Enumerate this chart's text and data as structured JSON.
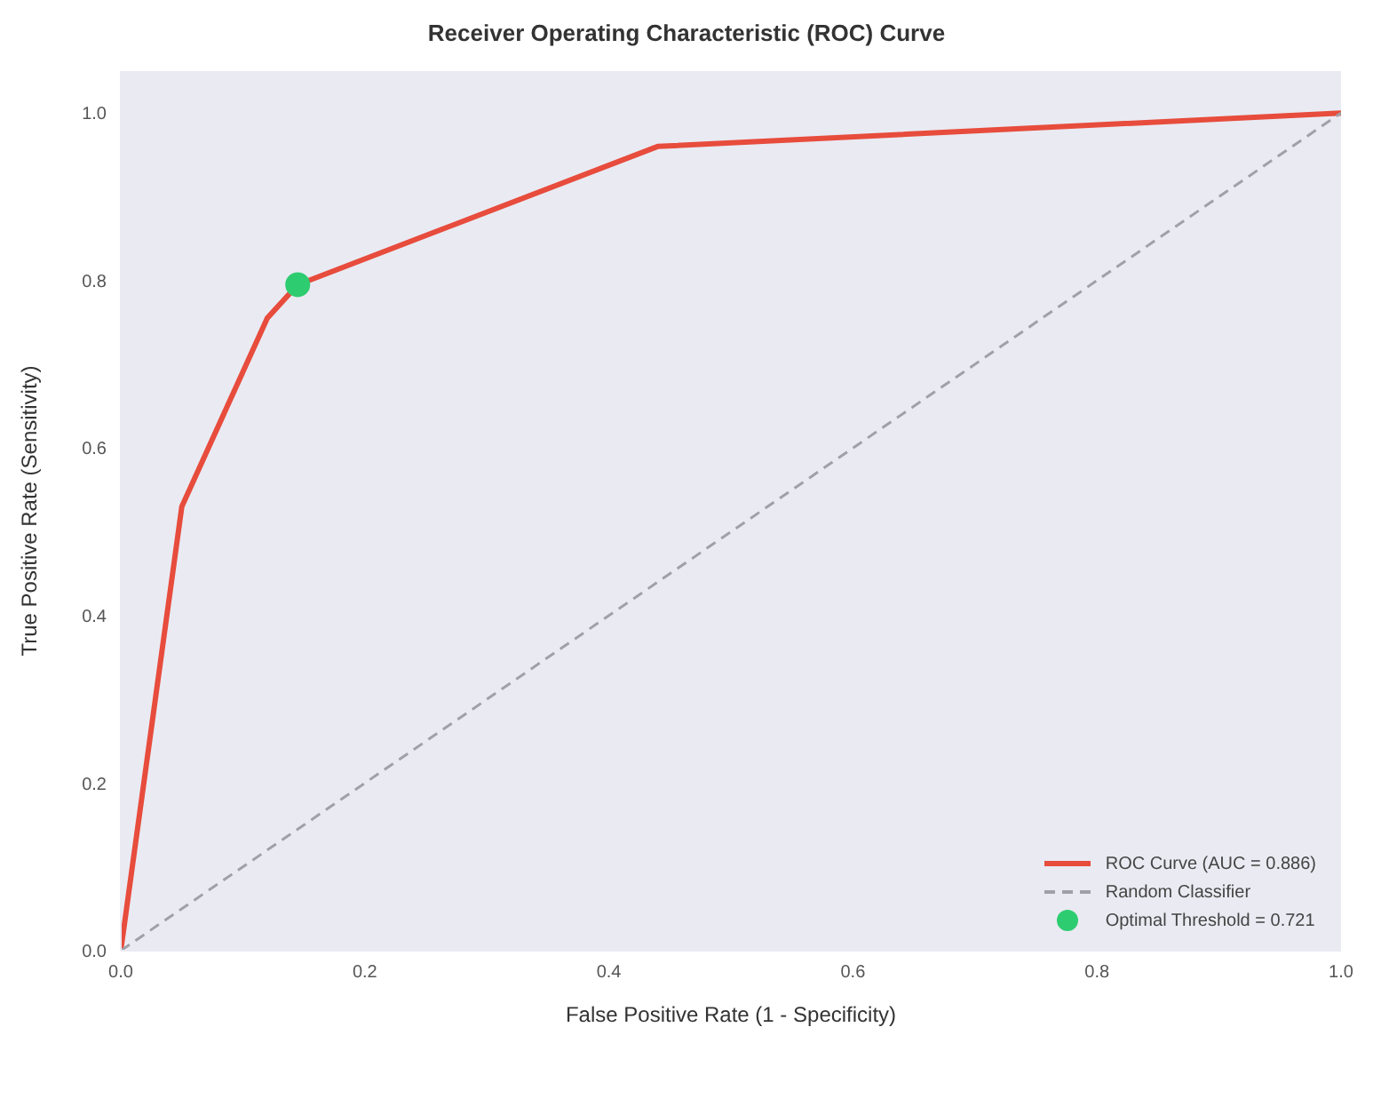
{
  "chart_data": {
    "type": "line",
    "title": "Receiver Operating Characteristic (ROC) Curve",
    "xlabel": "False Positive Rate (1 - Specificity)",
    "ylabel": "True Positive Rate (Sensitivity)",
    "xlim": [
      0,
      1
    ],
    "ylim": [
      0,
      1.05
    ],
    "xticks": [
      {
        "value": 0,
        "label": "0.0"
      },
      {
        "value": 0.2,
        "label": "0.2"
      },
      {
        "value": 0.4,
        "label": "0.4"
      },
      {
        "value": 0.6,
        "label": "0.6"
      },
      {
        "value": 0.8,
        "label": "0.8"
      },
      {
        "value": 1,
        "label": "1.0"
      }
    ],
    "yticks": [
      {
        "value": 0,
        "label": "0.0"
      },
      {
        "value": 0.2,
        "label": "0.2"
      },
      {
        "value": 0.4,
        "label": "0.4"
      },
      {
        "value": 0.6,
        "label": "0.6"
      },
      {
        "value": 0.8,
        "label": "0.8"
      },
      {
        "value": 1,
        "label": "1.0"
      }
    ],
    "grid": false,
    "legend": "bottom right",
    "series": [
      {
        "name": "ROC Curve (AUC = 0.886)",
        "color": "#e74c3c",
        "line_style": "solid",
        "x": [
          0,
          0.05,
          0.12,
          0.145,
          0.44,
          1
        ],
        "values": [
          0,
          0.53,
          0.755,
          0.795,
          0.96,
          1
        ]
      },
      {
        "name": "Random Classifier",
        "color": "#a0a0a8",
        "line_style": "dashed",
        "x": [
          0,
          1
        ],
        "values": [
          0,
          1
        ]
      },
      {
        "name": "Optimal Threshold = 0.721",
        "type": "scatter",
        "color": "#2ecc71",
        "marker": "circle",
        "x": [
          0.145
        ],
        "values": [
          0.795
        ]
      }
    ]
  }
}
